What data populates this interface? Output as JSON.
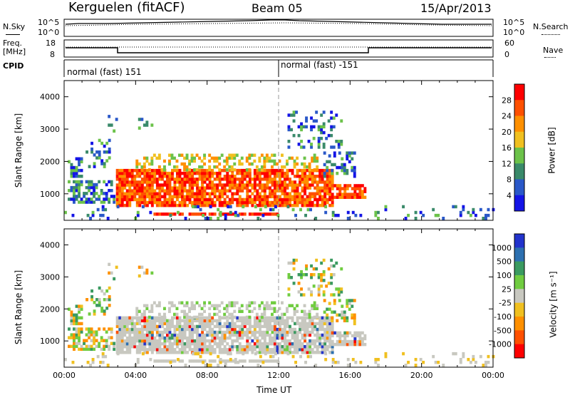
{
  "header": {
    "station": "Kerguelen (fitACF)",
    "beam": "Beam 05",
    "date": "15/Apr/2013"
  },
  "summary_panels": {
    "nsky_label": "N.Sky",
    "nsearch_label": "N.Search",
    "noise_ticks_left": [
      "10^5",
      "10^0"
    ],
    "noise_ticks_right": [
      "10^5",
      "10^0"
    ],
    "freq_label_line1": "Freq.",
    "freq_label_line2": "[MHz]",
    "freq_ticks": [
      "18",
      "8"
    ],
    "nave_label": "Nave",
    "nave_ticks": [
      "60",
      "0"
    ],
    "cpid_label": "CPID",
    "cpid_segments": [
      {
        "text": "normal (fast) 151",
        "start_hour": 0
      },
      {
        "text": "normal (fast) -151",
        "start_hour": 12
      }
    ]
  },
  "chart_data": [
    {
      "type": "heatmap",
      "name": "power",
      "ylabel": "Slant Range [km]",
      "ylim": [
        180,
        4500
      ],
      "yticks": [
        1000,
        2000,
        3000,
        4000
      ],
      "xlim": [
        0,
        24
      ],
      "colorbar_label": "Power [dB]",
      "colorbar_ticks": [
        4,
        8,
        12,
        16,
        20,
        24,
        28
      ],
      "colorbar_colors": [
        "#1414e6",
        "#2a58c8",
        "#3a8a6a",
        "#6cc24a",
        "#f0c020",
        "#ff9000",
        "#ff5000",
        "#ff0000"
      ]
    },
    {
      "type": "heatmap",
      "name": "velocity",
      "ylabel": "Slant Range [km]",
      "ylim": [
        180,
        4500
      ],
      "yticks": [
        1000,
        2000,
        3000,
        4000
      ],
      "xlim": [
        0,
        24
      ],
      "xlabel": "Time UT",
      "xticks": [
        "00:00",
        "04:00",
        "08:00",
        "12:00",
        "16:00",
        "20:00",
        "00:00"
      ],
      "colorbar_label": "Velocity [m s⁻¹]",
      "colorbar_ticks": [
        "1000",
        "500",
        "100",
        "25",
        "-25",
        "-100",
        "-500",
        "-1000"
      ],
      "colorbar_colors": [
        "#2233cc",
        "#2d70b0",
        "#3a9a60",
        "#70cc40",
        "#c8c8c0",
        "#f0c020",
        "#ff9000",
        "#ff5000",
        "#ff0000"
      ]
    }
  ]
}
